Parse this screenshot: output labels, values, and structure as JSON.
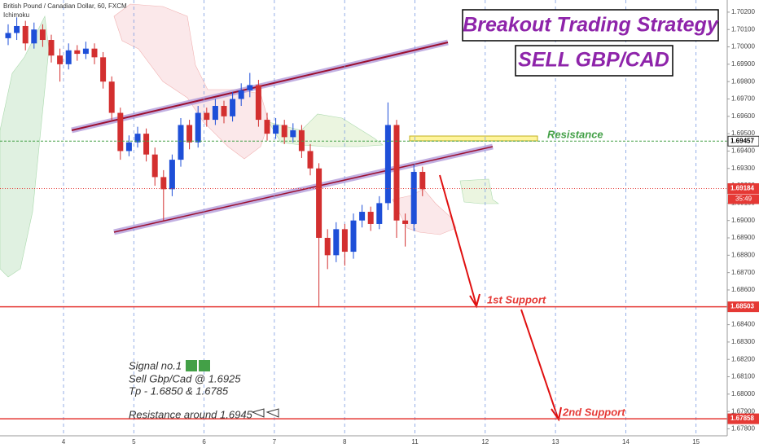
{
  "header": {
    "symbol": "British Pound / Canadian Dollar, 60, FXCM",
    "indicator": "Ichimoku"
  },
  "annotations": {
    "title": "Breakout Trading Strategy",
    "subtitle": "SELL GBP/CAD",
    "notes": [
      "Signal no.1",
      "Sell Gbp/Cad @ 1.6925",
      "Tp - 1.6850 & 1.6785",
      "Resistance around 1.6945"
    ]
  },
  "chart_data": {
    "type": "candlestick",
    "up_color": "#1e4fd8",
    "down_color": "#d32f2f",
    "x_labels": [
      "4",
      "5",
      "6",
      "7",
      "8",
      "11",
      "12",
      "13",
      "14",
      "15"
    ],
    "open": [
      1.7005,
      1.7008,
      1.7012,
      1.7002,
      1.701,
      1.7004,
      1.6995,
      1.699,
      1.6998,
      1.6996,
      1.6999,
      1.6994,
      1.698,
      1.6962,
      1.694,
      1.6945,
      1.695,
      1.6938,
      1.6925,
      1.6918,
      1.6935,
      1.6955,
      1.6945,
      1.6962,
      1.6958,
      1.6966,
      1.696,
      1.697,
      1.6975,
      1.6978,
      1.6958,
      1.695,
      1.6955,
      1.6948,
      1.6952,
      1.694,
      1.693,
      1.689,
      1.688,
      1.6895,
      1.6882,
      1.69,
      1.6905,
      1.6898,
      1.691,
      1.6955,
      1.69,
      1.6898,
      1.6928
    ],
    "high": [
      1.7013,
      1.7017,
      1.7015,
      1.7014,
      1.7013,
      1.7007,
      1.6999,
      1.7002,
      1.7001,
      1.7003,
      1.7002,
      1.6997,
      1.6983,
      1.6965,
      1.6949,
      1.6954,
      1.6953,
      1.6942,
      1.6929,
      1.6938,
      1.6959,
      1.6958,
      1.6966,
      1.6965,
      1.697,
      1.6969,
      1.6974,
      1.6979,
      1.6985,
      1.6981,
      1.6962,
      1.6959,
      1.6958,
      1.6956,
      1.6955,
      1.6944,
      1.6933,
      1.6895,
      1.6899,
      1.6898,
      1.6904,
      1.6909,
      1.6908,
      1.6914,
      1.6968,
      1.6958,
      1.6904,
      1.6932,
      1.6931
    ],
    "low": [
      1.7001,
      1.7004,
      1.6998,
      1.6999,
      1.7,
      1.6991,
      1.698,
      1.6987,
      1.6992,
      1.6993,
      1.699,
      1.6976,
      1.6958,
      1.6935,
      1.6937,
      1.6942,
      1.6934,
      1.692,
      1.69,
      1.6914,
      1.6931,
      1.6941,
      1.6942,
      1.6954,
      1.6955,
      1.6956,
      1.6957,
      1.6966,
      1.6971,
      1.6954,
      1.6946,
      1.6947,
      1.6944,
      1.6945,
      1.6936,
      1.6926,
      1.685,
      1.6872,
      1.6876,
      1.6874,
      1.6878,
      1.6896,
      1.6894,
      1.6895,
      1.6906,
      1.689,
      1.6885,
      1.6894,
      1.6914
    ],
    "close": [
      1.7008,
      1.7012,
      1.7002,
      1.701,
      1.7004,
      1.6995,
      1.699,
      1.6998,
      1.6996,
      1.6999,
      1.6994,
      1.698,
      1.6962,
      1.694,
      1.6945,
      1.695,
      1.6938,
      1.6925,
      1.6918,
      1.6935,
      1.6955,
      1.6945,
      1.6962,
      1.6958,
      1.6966,
      1.696,
      1.697,
      1.6975,
      1.6978,
      1.6958,
      1.695,
      1.6955,
      1.6948,
      1.6952,
      1.694,
      1.693,
      1.689,
      1.688,
      1.6895,
      1.6882,
      1.69,
      1.6905,
      1.6898,
      1.691,
      1.6955,
      1.69,
      1.6898,
      1.6928,
      1.6918
    ],
    "ylim": [
      1.6776,
      1.7027
    ],
    "yticks": [
      {
        "value": 1.678,
        "label": "1.67800"
      },
      {
        "value": 1.679,
        "label": "1.67900"
      },
      {
        "value": 1.68,
        "label": "1.68000"
      },
      {
        "value": 1.681,
        "label": "1.68100"
      },
      {
        "value": 1.682,
        "label": "1.68200"
      },
      {
        "value": 1.683,
        "label": "1.68300"
      },
      {
        "value": 1.684,
        "label": "1.68400"
      },
      {
        "value": 1.685,
        "label": "1.68500"
      },
      {
        "value": 1.686,
        "label": "1.68600"
      },
      {
        "value": 1.687,
        "label": "1.68700"
      },
      {
        "value": 1.688,
        "label": "1.68800"
      },
      {
        "value": 1.689,
        "label": "1.68900"
      },
      {
        "value": 1.69,
        "label": "1.69000"
      },
      {
        "value": 1.691,
        "label": "1.69100"
      },
      {
        "value": 1.692,
        "label": "1.69200"
      },
      {
        "value": 1.693,
        "label": "1.69300"
      },
      {
        "value": 1.694,
        "label": "1.69400"
      },
      {
        "value": 1.695,
        "label": "1.69500"
      },
      {
        "value": 1.696,
        "label": "1.69600"
      },
      {
        "value": 1.697,
        "label": "1.69700"
      },
      {
        "value": 1.698,
        "label": "1.69800"
      },
      {
        "value": 1.699,
        "label": "1.69900"
      },
      {
        "value": 1.7,
        "label": "1.70000"
      },
      {
        "value": 1.701,
        "label": "1.70100"
      },
      {
        "value": 1.702,
        "label": "1.70200"
      }
    ],
    "levels": [
      {
        "name": "Resistance",
        "value": 1.69457,
        "color": "#43a047"
      },
      {
        "value": 1.69184,
        "countdown": "35:49",
        "color": "#e53935"
      },
      {
        "name": "1st Support",
        "value": 1.68503,
        "color": "#e53935"
      },
      {
        "name": "2nd Support",
        "value": 1.67858,
        "color": "#e53935"
      }
    ]
  }
}
